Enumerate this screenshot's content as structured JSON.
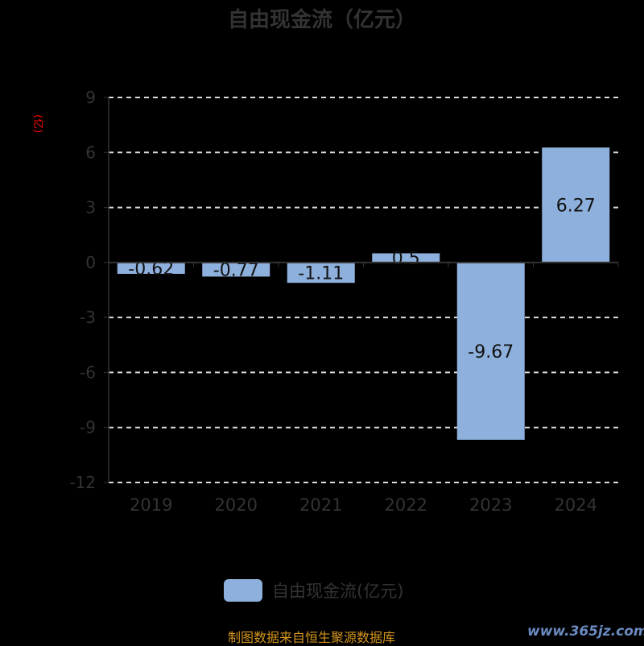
{
  "chart_data": {
    "type": "bar",
    "title": "自由现金流（亿元）",
    "ylabel": "(亿)",
    "categories": [
      "2019",
      "2020",
      "2021",
      "2022",
      "2023",
      "2024"
    ],
    "series": [
      {
        "name": "自由现金流(亿元)",
        "values": [
          -0.62,
          -0.77,
          -1.11,
          0.5,
          -9.67,
          6.27
        ]
      }
    ],
    "data_labels": [
      "-0.62",
      "-0.77",
      "-1.11",
      "0.5",
      "-9.67",
      "6.27"
    ],
    "ylim": [
      -12,
      9
    ],
    "yticks": [
      9,
      6,
      3,
      0,
      -3,
      -6,
      -9,
      -12
    ],
    "grid": true,
    "legend": "bottom",
    "colors": {
      "bar": "#8eb0dc",
      "grid": "#dddddd",
      "axis": "#333333",
      "title": "#333333",
      "ylabel": "#ff0000"
    }
  },
  "footer": {
    "source": "制图数据来自恒生聚源数据库",
    "watermark": "www.365jz.com"
  }
}
